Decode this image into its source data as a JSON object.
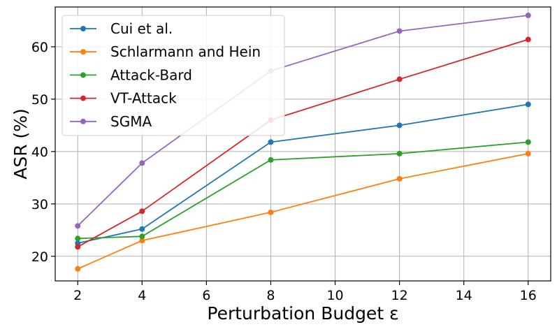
{
  "chart_data": {
    "type": "line",
    "xlabel": "Perturbation Budget ε",
    "ylabel": "ASR (%)",
    "xlim": [
      1.3,
      16.7
    ],
    "ylim": [
      15.3,
      67.6
    ],
    "x_ticks": [
      2,
      4,
      6,
      8,
      10,
      12,
      14,
      16
    ],
    "y_ticks": [
      20,
      30,
      40,
      50,
      60
    ],
    "grid": true,
    "legend_position": "top-left",
    "series": [
      {
        "name": "Cui et al.",
        "color": "#1f77b4",
        "x": [
          2,
          4,
          8,
          12,
          16
        ],
        "values": [
          22.5,
          25.2,
          41.8,
          45.0,
          49.0
        ]
      },
      {
        "name": "Schlarmann and Hein",
        "color": "#ff7f0e",
        "x": [
          2,
          4,
          8,
          12,
          16
        ],
        "values": [
          17.6,
          23.0,
          28.4,
          34.8,
          39.6
        ]
      },
      {
        "name": "Attack-Bard",
        "color": "#2ca02c",
        "x": [
          2,
          4,
          8,
          12,
          16
        ],
        "values": [
          23.4,
          23.8,
          38.4,
          39.6,
          41.8
        ]
      },
      {
        "name": "VT-Attack",
        "color": "#d62728",
        "x": [
          2,
          4,
          8,
          12,
          16
        ],
        "values": [
          21.8,
          28.6,
          46.0,
          53.8,
          61.4
        ]
      },
      {
        "name": "SGMA",
        "color": "#9467bd",
        "x": [
          2,
          4,
          8,
          12,
          16
        ],
        "values": [
          25.8,
          37.8,
          55.4,
          63.0,
          66.0
        ]
      }
    ]
  }
}
